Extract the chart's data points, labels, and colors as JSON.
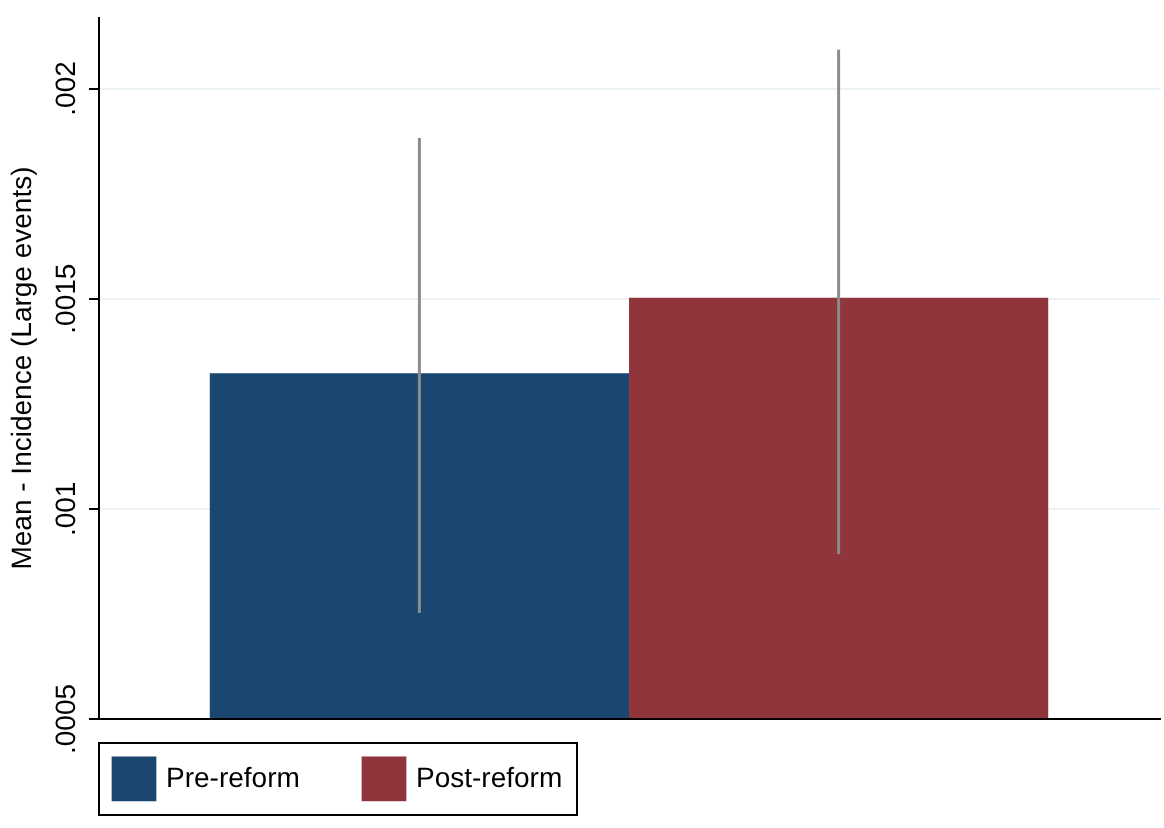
{
  "chart_data": {
    "type": "bar",
    "ylabel": "Mean - Incidence (Large events)",
    "categories": [
      null
    ],
    "series": [
      {
        "name": "Pre-reform",
        "color": "#1a476f",
        "values": [
          0.00132
        ],
        "errors": [
          [
            0.00075,
            0.00188
          ]
        ]
      },
      {
        "name": "Post-reform",
        "color": "#90353b",
        "values": [
          0.0015
        ],
        "errors": [
          [
            0.00089,
            0.00209
          ]
        ]
      }
    ],
    "ylim": [
      0.0005,
      0.00217
    ],
    "yticks": [
      {
        "value": 0.0005,
        "label": ".0005"
      },
      {
        "value": 0.001,
        "label": ".001"
      },
      {
        "value": 0.0015,
        "label": ".0015"
      },
      {
        "value": 0.002,
        "label": ".002"
      }
    ],
    "grid": "y",
    "legend": "bottom"
  }
}
